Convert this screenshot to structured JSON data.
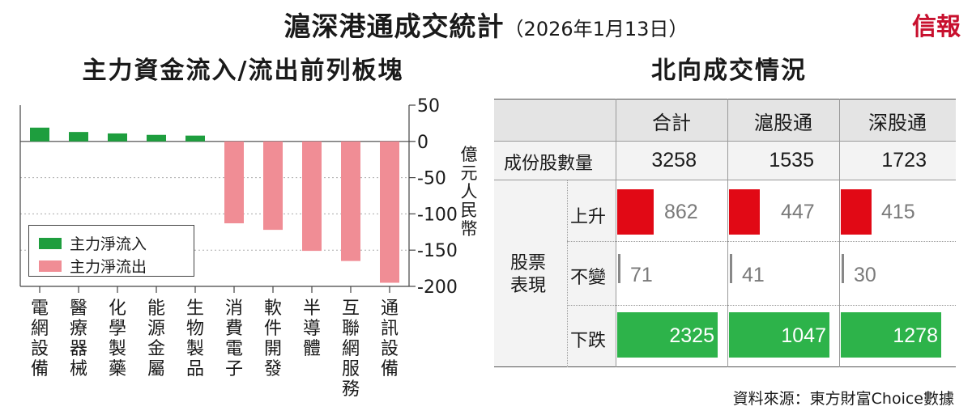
{
  "title": "滬深港通成交統計",
  "date": "（2026年1月13日）",
  "brand": "信報",
  "chart_data": {
    "type": "bar",
    "title": "主力資金流入/流出前列板塊",
    "ylabel": "億元人民幣",
    "ylim": [
      -200,
      50
    ],
    "yticks": [
      50,
      0,
      -50,
      -100,
      -150,
      -200
    ],
    "categories": [
      "電網設備",
      "醫療器械",
      "化學製藥",
      "能源金屬",
      "生物製品",
      "消費電子",
      "軟件開發",
      "半導體",
      "互聯網服務",
      "通訊設備"
    ],
    "values": [
      19,
      13,
      11,
      9,
      8,
      -113,
      -122,
      -151,
      -165,
      -195
    ],
    "legend_position": "bottom-left",
    "series": [
      {
        "name": "主力淨流入",
        "color": "#1e9e3e"
      },
      {
        "name": "主力淨流出",
        "color": "#f08d95"
      }
    ],
    "grid": true
  },
  "northbound": {
    "title": "北向成交情況",
    "columns": [
      "合計",
      "滬股通",
      "深股通"
    ],
    "row_label": "成份股數量",
    "counts": [
      "3258",
      "1535",
      "1723"
    ],
    "group_label_1": "股票",
    "group_label_2": "表現",
    "perf_labels": [
      "上升",
      "不變",
      "下跌"
    ],
    "up": [
      862,
      447,
      415
    ],
    "flat": [
      71,
      41,
      30
    ],
    "down": [
      2325,
      1047,
      1278
    ],
    "up_color": "#e10915",
    "down_color": "#2db34a"
  },
  "source": "資料來源：東方財富Choice數據"
}
